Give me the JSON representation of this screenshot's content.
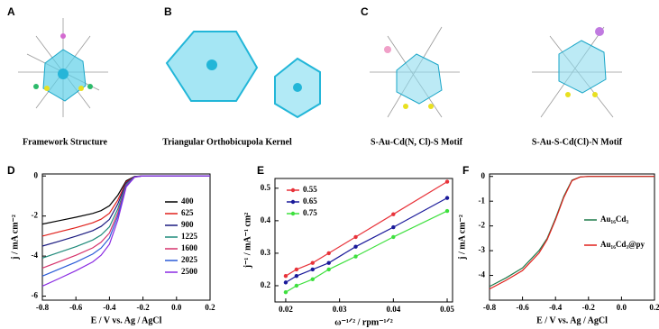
{
  "top_panels": [
    {
      "letter": "A",
      "caption": "Framework Structure"
    },
    {
      "letter": "B",
      "caption": "Triangular Orthobicupola Kernel"
    },
    {
      "letter": "C",
      "caption": "S-Au-Cd(N, Cl)-S Motif"
    },
    {
      "caption": "S-Au-S-Cd(Cl)-N Motif"
    }
  ],
  "chart_data": [
    {
      "type": "line",
      "label": "D",
      "xlabel": "E / V vs. Ag / AgCl",
      "ylabel": "j / mA cm⁻²",
      "x": [
        -0.8,
        -0.7,
        -0.6,
        -0.5,
        -0.45,
        -0.4,
        -0.35,
        -0.3,
        -0.25,
        -0.2,
        -0.1,
        0,
        0.2
      ],
      "xlim": [
        -0.8,
        0.2
      ],
      "xticks": [
        -0.8,
        -0.6,
        -0.4,
        -0.2,
        {
          "value": 0,
          "label": "0.0"
        },
        0.2
      ],
      "ylim": [
        -6.2,
        0.1
      ],
      "yticks": [
        -6,
        -4,
        -2,
        0
      ],
      "series": [
        {
          "name": "400",
          "color": "#000000",
          "values": [
            -2.4,
            -2.23,
            -2.06,
            -1.87,
            -1.73,
            -1.49,
            -0.96,
            -0.24,
            -0.02,
            0,
            0,
            0,
            0
          ]
        },
        {
          "name": "625",
          "color": "#e0201b",
          "values": [
            -3.0,
            -2.79,
            -2.58,
            -2.34,
            -2.16,
            -1.86,
            -1.2,
            -0.3,
            -0.03,
            0,
            0,
            0,
            0
          ]
        },
        {
          "name": "900",
          "color": "#1a1a80",
          "values": [
            -3.5,
            -3.26,
            -3.01,
            -2.73,
            -2.52,
            -2.17,
            -1.4,
            -0.35,
            -0.04,
            0,
            0,
            0,
            0
          ]
        },
        {
          "name": "1225",
          "color": "#1f8a7a",
          "values": [
            -4.1,
            -3.81,
            -3.53,
            -3.2,
            -2.95,
            -2.54,
            -1.64,
            -0.41,
            -0.04,
            0,
            0,
            0,
            0
          ]
        },
        {
          "name": "1600",
          "color": "#d6336c",
          "values": [
            -4.6,
            -4.28,
            -3.96,
            -3.59,
            -3.31,
            -2.85,
            -1.84,
            -0.46,
            -0.05,
            0,
            0,
            0,
            0
          ]
        },
        {
          "name": "2025",
          "color": "#2a5bd7",
          "values": [
            -5.0,
            -4.65,
            -4.3,
            -3.9,
            -3.6,
            -3.1,
            -2.0,
            -0.5,
            -0.05,
            0,
            0,
            0,
            0
          ]
        },
        {
          "name": "2500",
          "color": "#8a2be2",
          "values": [
            -5.5,
            -5.12,
            -4.73,
            -4.29,
            -3.96,
            -3.41,
            -2.2,
            -0.55,
            -0.06,
            0,
            0,
            0,
            0
          ]
        }
      ]
    },
    {
      "type": "line",
      "markers": true,
      "label": "E",
      "xlabel": "ω⁻¹ᐟ² / rpm⁻¹ᐟ²",
      "ylabel": "j⁻¹ / mA⁻¹ cm²",
      "x": [
        0.02,
        0.022,
        0.025,
        0.028,
        0.033,
        0.04,
        0.05
      ],
      "xlim": [
        0.018,
        0.051
      ],
      "xticks": [
        0.02,
        0.03,
        0.04,
        0.05
      ],
      "ylim": [
        0.15,
        0.53
      ],
      "yticks": [
        0.2,
        0.3,
        0.4,
        0.5
      ],
      "series": [
        {
          "name": "0.55",
          "color": "#e8333a",
          "values": [
            0.23,
            0.25,
            0.27,
            0.3,
            0.35,
            0.42,
            0.52
          ]
        },
        {
          "name": "0.65",
          "color": "#1a1a9a",
          "values": [
            0.21,
            0.23,
            0.25,
            0.27,
            0.32,
            0.38,
            0.47
          ]
        },
        {
          "name": "0.75",
          "color": "#3ee03e",
          "values": [
            0.18,
            0.2,
            0.22,
            0.25,
            0.29,
            0.35,
            0.43
          ]
        }
      ]
    },
    {
      "type": "line",
      "label": "F",
      "xlabel": "E / V vs. Ag / AgCl",
      "ylabel": "j / mA cm⁻²",
      "x": [
        -0.8,
        -0.7,
        -0.6,
        -0.5,
        -0.45,
        -0.4,
        -0.35,
        -0.3,
        -0.25,
        -0.2,
        -0.1,
        0,
        0.2
      ],
      "xlim": [
        -0.8,
        0.2
      ],
      "xticks": [
        -0.8,
        -0.6,
        -0.4,
        -0.2,
        {
          "value": 0,
          "label": "0.0"
        },
        0.2
      ],
      "ylim": [
        -5,
        0.1
      ],
      "yticks": [
        -4,
        -3,
        -2,
        -1,
        0
      ],
      "series": [
        {
          "name": "Au₁₆Cd₃",
          "color": "#1f7a4a",
          "values": [
            -4.45,
            -4.1,
            -3.7,
            -3.0,
            -2.5,
            -1.7,
            -0.8,
            -0.15,
            -0.02,
            0,
            0,
            0,
            0
          ]
        },
        {
          "name": "Au₁₆Cd₃@py",
          "color": "#e0201b",
          "values": [
            -4.55,
            -4.2,
            -3.8,
            -3.1,
            -2.55,
            -1.75,
            -0.85,
            -0.17,
            -0.02,
            0,
            0,
            0,
            0
          ]
        }
      ]
    }
  ]
}
